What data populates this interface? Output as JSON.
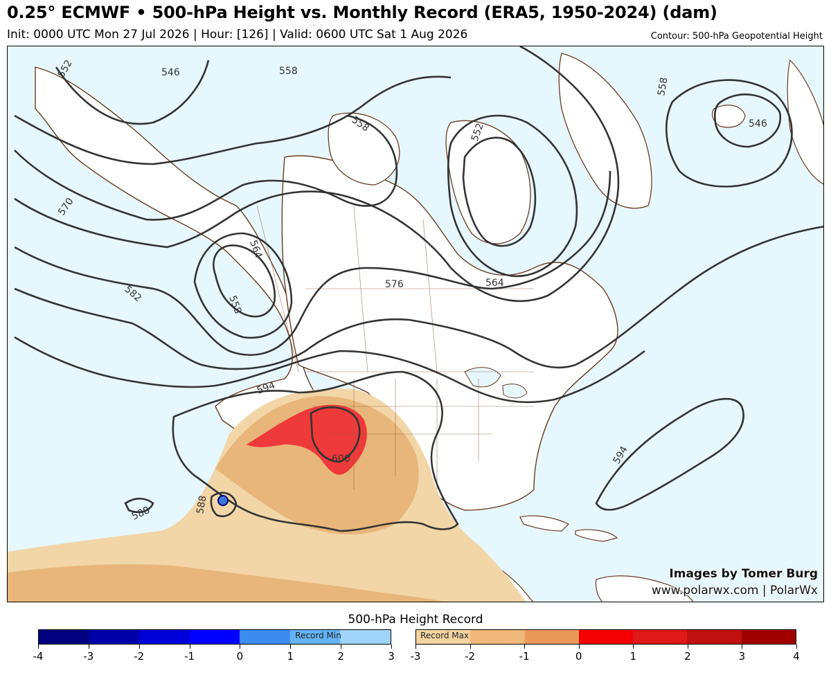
{
  "header": {
    "title": "0.25° ECMWF • 500-hPa Height vs. Monthly Record (ERA5, 1950-2024) (dam)",
    "subtitle": "Init: 0000 UTC Mon 27 Jul 2026 | Hour: [126] | Valid: 0600 UTC Sat 1 Aug 2026",
    "contour_note": "Contour: 500-hPa Geopotential Height"
  },
  "credits": {
    "line1": "Images by Tomer Burg",
    "line2": "www.polarwx.com | PolarWx"
  },
  "contour_labels": [
    "552",
    "546",
    "558",
    "558",
    "552",
    "558",
    "546",
    "570",
    "564",
    "558",
    "582",
    "576",
    "564",
    "594",
    "600",
    "594",
    "588",
    "588"
  ],
  "colors": {
    "ocean": "#e6f7fd",
    "land": "#ffffff",
    "coast": "#6b3a1e",
    "contour": "#333333",
    "anomaly_low": "#f2d6a8",
    "anomaly_mid": "#e8b67a",
    "anomaly_high": "#d9a066",
    "record_exceed": "#ee3a3a"
  },
  "legend": {
    "title": "500-hPa Height Record",
    "min_label": "Record Min",
    "max_label": "Record Max",
    "min_ticks": [
      "-4",
      "-3",
      "-2",
      "-1",
      "0",
      "1",
      "2",
      "3"
    ],
    "max_ticks": [
      "-3",
      "-2",
      "-1",
      "0",
      "1",
      "2",
      "3",
      "4"
    ],
    "min_colors": [
      "#000080",
      "#0000a8",
      "#0000d8",
      "#0000ff",
      "#3c8cf0",
      "#64b4f4",
      "#a0d4f8"
    ],
    "max_colors": [
      "#f4d4a0",
      "#f0b878",
      "#ea9a58",
      "#f40000",
      "#e01818",
      "#c01010",
      "#a00000"
    ]
  }
}
